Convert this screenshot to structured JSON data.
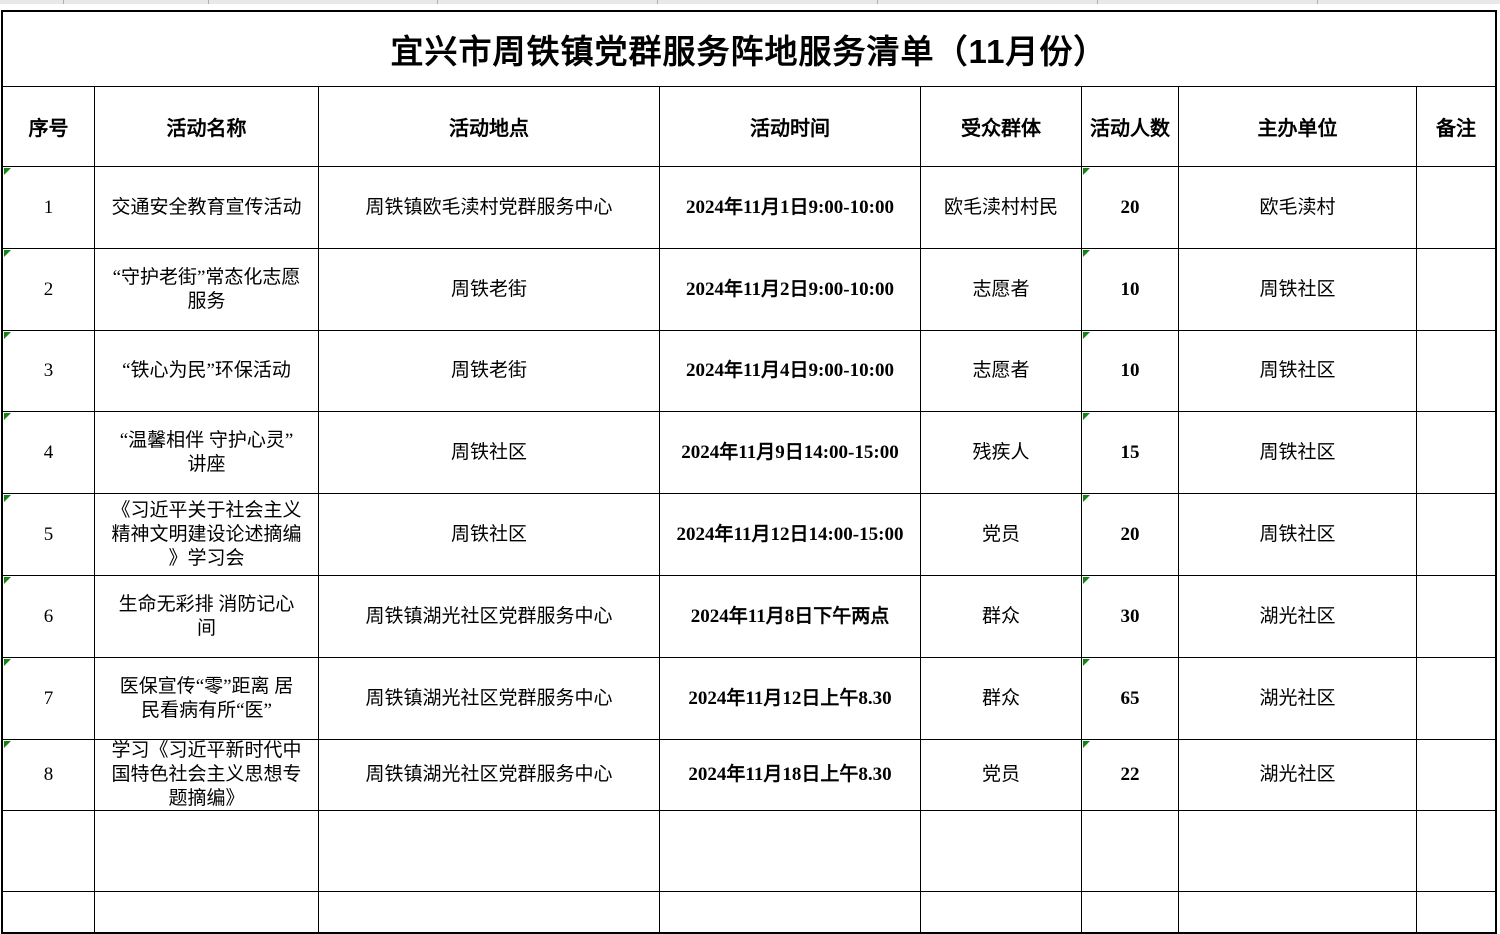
{
  "colors": {
    "error_marker": "#128412",
    "grid": "#000000",
    "background": "#ffffff",
    "top_strip": "#e8e8e8"
  },
  "table": {
    "title": "宜兴市周铁镇党群服务阵地服务清单（11月份）",
    "columns": [
      "序号",
      "活动名称",
      "活动地点",
      "活动时间",
      "受众群体",
      "活动人数",
      "主办单位",
      "备注"
    ],
    "rows": [
      {
        "cells": [
          "1",
          "交通安全教育宣传活动",
          "周铁镇欧毛渎村党群服务中心",
          "2024年11月1日9:00-10:00",
          "欧毛渎村村民",
          "20",
          "欧毛渎村",
          ""
        ],
        "error_marker_cols": [
          0,
          5
        ]
      },
      {
        "cells": [
          "2",
          "“守护老街”常态化志愿\n服务",
          "周铁老街",
          "2024年11月2日9:00-10:00",
          "志愿者",
          "10",
          "周铁社区",
          ""
        ],
        "error_marker_cols": [
          0,
          5
        ]
      },
      {
        "cells": [
          "3",
          "“铁心为民”环保活动",
          "周铁老街",
          "2024年11月4日9:00-10:00",
          "志愿者",
          "10",
          "周铁社区",
          ""
        ],
        "error_marker_cols": [
          0,
          5
        ]
      },
      {
        "cells": [
          "4",
          "“温馨相伴 守护心灵”\n讲座",
          "周铁社区",
          "2024年11月9日14:00-15:00",
          "残疾人",
          "15",
          "周铁社区",
          ""
        ],
        "error_marker_cols": [
          0,
          5
        ]
      },
      {
        "cells": [
          "5",
          "《习近平关于社会主义\n精神文明建设论述摘编\n》学习会",
          "周铁社区",
          "2024年11月12日14:00-15:00",
          "党员",
          "20",
          "周铁社区",
          ""
        ],
        "error_marker_cols": [
          0,
          5
        ]
      },
      {
        "cells": [
          "6",
          "生命无彩排 消防记心\n间",
          "周铁镇湖光社区党群服务中心",
          "2024年11月8日下午两点",
          "群众",
          "30",
          "湖光社区",
          ""
        ],
        "error_marker_cols": [
          0,
          5
        ]
      },
      {
        "cells": [
          "7",
          "医保宣传“零”距离 居\n民看病有所“医”",
          "周铁镇湖光社区党群服务中心",
          "2024年11月12日上午8.30",
          "群众",
          "65",
          "湖光社区",
          ""
        ],
        "error_marker_cols": [
          0,
          5
        ]
      },
      {
        "cells": [
          "8",
          "学习《习近平新时代中\n国特色社会主义思想专\n题摘编》",
          "周铁镇湖光社区党群服务中心",
          "2024年11月18日上午8.30",
          "党员",
          "22",
          "湖光社区",
          ""
        ],
        "error_marker_cols": [
          0,
          5
        ]
      },
      {
        "cells": [
          "",
          "",
          "",
          "",
          "",
          "",
          "",
          ""
        ],
        "error_marker_cols": []
      },
      {
        "cells": [
          "",
          "",
          "",
          "",
          "",
          "",
          "",
          ""
        ],
        "error_marker_cols": []
      }
    ]
  }
}
